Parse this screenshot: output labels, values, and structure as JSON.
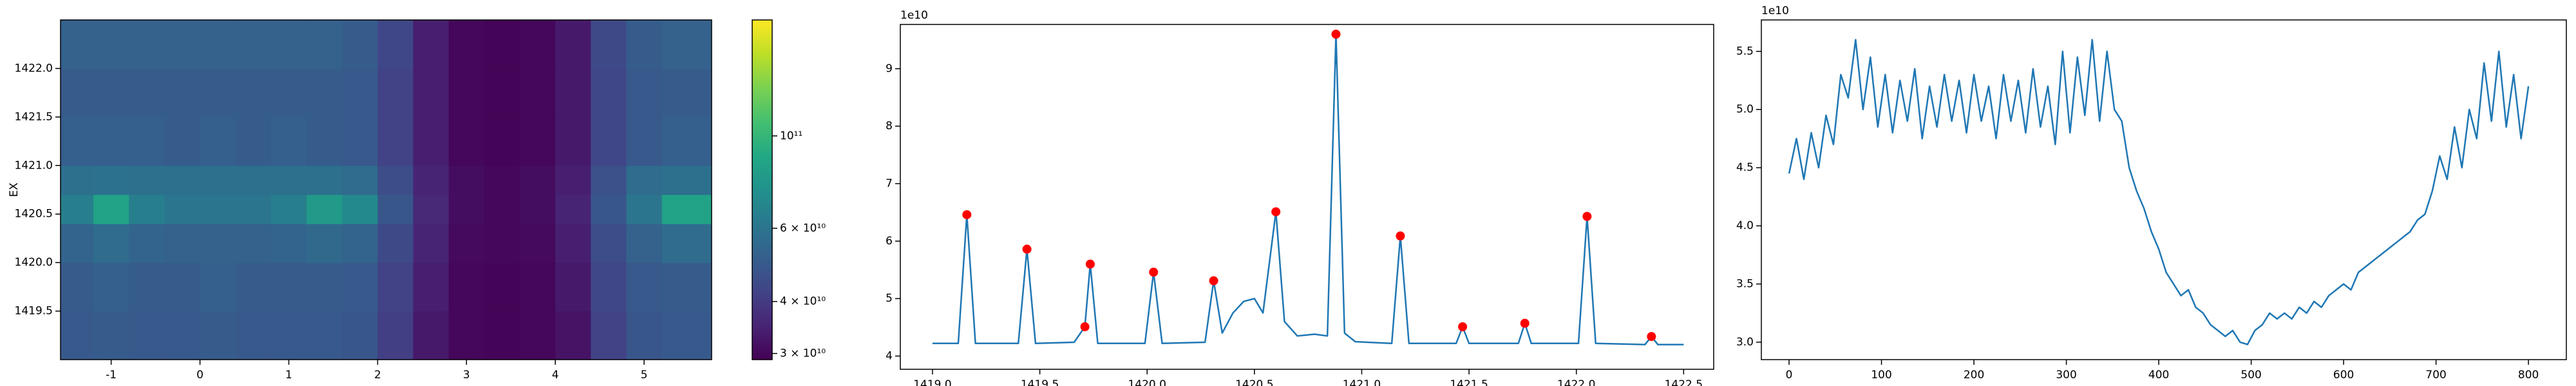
{
  "chart_data": [
    {
      "type": "heatmap",
      "ylabel": "EX",
      "cmap": "viridis",
      "x_edges": [
        -1.57,
        -1.2,
        -0.8,
        -0.4,
        0,
        0.4,
        0.8,
        1.2,
        1.6,
        2.0,
        2.4,
        2.8,
        3.2,
        3.6,
        4.0,
        4.4,
        4.8,
        5.2,
        5.76
      ],
      "y_edges": [
        1419.0,
        1419.5,
        1420.0,
        1420.4,
        1420.7,
        1421.0,
        1421.5,
        1422.0,
        1422.5
      ],
      "z": [
        [
          49000000000.0,
          50000000000.0,
          49000000000.0,
          49000000000.0,
          50000000000.0,
          49000000000.0,
          49000000000.0,
          49000000000.0,
          48000000000.0,
          41000000000.0,
          33000000000.0,
          30000000000.0,
          29500000000.0,
          30000000000.0,
          32000000000.0,
          42000000000.0,
          48000000000.0,
          49000000000.0
        ],
        [
          50000000000.0,
          51000000000.0,
          50000000000.0,
          50000000000.0,
          51000000000.0,
          50000000000.0,
          50000000000.0,
          50000000000.0,
          49000000000.0,
          42000000000.0,
          34000000000.0,
          30000000000.0,
          29500000000.0,
          30000000000.0,
          33000000000.0,
          43000000000.0,
          49000000000.0,
          50000000000.0
        ],
        [
          53000000000.0,
          56000000000.0,
          53000000000.0,
          52000000000.0,
          52000000000.0,
          52000000000.0,
          53000000000.0,
          55000000000.0,
          53000000000.0,
          44000000000.0,
          35000000000.0,
          30500000000.0,
          30000000000.0,
          30500000000.0,
          34000000000.0,
          45000000000.0,
          52000000000.0,
          56000000000.0
        ],
        [
          65000000000.0,
          85000000000.0,
          65000000000.0,
          60000000000.0,
          60000000000.0,
          60000000000.0,
          65000000000.0,
          80000000000.0,
          70000000000.0,
          48000000000.0,
          36000000000.0,
          31000000000.0,
          30000000000.0,
          31000000000.0,
          35000000000.0,
          48000000000.0,
          60000000000.0,
          85000000000.0
        ],
        [
          58000000000.0,
          59000000000.0,
          58000000000.0,
          58000000000.0,
          58000000000.0,
          58000000000.0,
          58000000000.0,
          58000000000.0,
          56000000000.0,
          45000000000.0,
          35000000000.0,
          31000000000.0,
          30000000000.0,
          31000000000.0,
          34000000000.0,
          46000000000.0,
          56000000000.0,
          58000000000.0
        ],
        [
          51000000000.0,
          51000000000.0,
          51000000000.0,
          50000000000.0,
          51000000000.0,
          50000000000.0,
          51000000000.0,
          50000000000.0,
          49000000000.0,
          42000000000.0,
          34000000000.0,
          30000000000.0,
          29500000000.0,
          30000000000.0,
          33000000000.0,
          43000000000.0,
          49000000000.0,
          51000000000.0
        ],
        [
          50000000000.0,
          50000000000.0,
          50000000000.0,
          50000000000.0,
          50000000000.0,
          50000000000.0,
          50000000000.0,
          50000000000.0,
          49000000000.0,
          42000000000.0,
          34000000000.0,
          30000000000.0,
          29500000000.0,
          30000000000.0,
          33000000000.0,
          43000000000.0,
          49000000000.0,
          50000000000.0
        ],
        [
          52000000000.0,
          52000000000.0,
          52000000000.0,
          52000000000.0,
          52000000000.0,
          52000000000.0,
          52000000000.0,
          52000000000.0,
          50000000000.0,
          43000000000.0,
          34000000000.0,
          30000000000.0,
          29500000000.0,
          30000000000.0,
          33000000000.0,
          44000000000.0,
          50000000000.0,
          52000000000.0
        ]
      ],
      "xlim": [
        -1.57,
        5.76
      ],
      "xticks": [
        -1,
        0,
        1,
        2,
        3,
        4,
        5
      ],
      "ylim": [
        1419.0,
        1422.5
      ],
      "yticks": [
        1419.5,
        {
          "value": 1420,
          "label": "1420.0"
        },
        1420.5,
        {
          "value": 1421,
          "label": "1421.0"
        },
        1421.5,
        {
          "value": 1422,
          "label": "1422.0"
        }
      ],
      "colorbar": {
        "log": true,
        "lim": [
          29000000000.0,
          190000000000.0
        ],
        "ticks": [
          {
            "value": 30000000000.0,
            "label": "3 × 10¹⁰"
          },
          {
            "value": 40000000000.0,
            "label": "4 × 10¹⁰"
          },
          {
            "value": 60000000000.0,
            "label": "6 × 10¹⁰"
          },
          {
            "value": 100000000000.0,
            "label": "10¹¹"
          }
        ]
      }
    },
    {
      "type": "line",
      "offset_label": "1e10",
      "series": [
        {
          "type": "line",
          "color": "#1f77b4",
          "x": [
            1419.0,
            1419.12,
            1419.16,
            1419.2,
            1419.4,
            1419.44,
            1419.48,
            1419.66,
            1419.71,
            1419.735,
            1419.77,
            1419.99,
            1420.03,
            1420.07,
            1420.27,
            1420.31,
            1420.35,
            1420.4,
            1420.45,
            1420.5,
            1420.54,
            1420.6,
            1420.64,
            1420.7,
            1420.78,
            1420.84,
            1420.88,
            1420.92,
            1420.97,
            1421.14,
            1421.18,
            1421.22,
            1421.44,
            1421.47,
            1421.5,
            1421.73,
            1421.76,
            1421.79,
            1422.01,
            1422.05,
            1422.09,
            1422.32,
            1422.35,
            1422.38,
            1422.5
          ],
          "values": [
            4.22,
            4.22,
            6.46,
            4.22,
            4.22,
            5.86,
            4.22,
            4.24,
            4.51,
            5.6,
            4.22,
            4.22,
            5.46,
            4.22,
            4.24,
            5.31,
            4.4,
            4.75,
            4.95,
            5.0,
            4.75,
            6.51,
            4.6,
            4.35,
            4.38,
            4.35,
            9.6,
            4.4,
            4.25,
            4.22,
            6.09,
            4.22,
            4.22,
            4.51,
            4.22,
            4.22,
            4.57,
            4.22,
            4.22,
            6.43,
            4.22,
            4.2,
            4.34,
            4.2,
            4.2
          ]
        },
        {
          "type": "scatter",
          "color": "#ff0000",
          "x": [
            1419.16,
            1419.44,
            1419.71,
            1419.735,
            1420.03,
            1420.31,
            1420.6,
            1420.88,
            1421.18,
            1421.47,
            1421.76,
            1422.05,
            1422.35
          ],
          "values": [
            6.46,
            5.86,
            4.51,
            5.6,
            5.46,
            5.31,
            6.51,
            9.6,
            6.09,
            4.51,
            4.57,
            6.43,
            4.34
          ]
        }
      ],
      "xlim": [
        1418.85,
        1422.64
      ],
      "xticks": [
        {
          "value": 1419,
          "label": "1419.0"
        },
        1419.5,
        {
          "value": 1420,
          "label": "1420.0"
        },
        1420.5,
        {
          "value": 1421,
          "label": "1421.0"
        },
        1421.5,
        {
          "value": 1422,
          "label": "1422.0"
        },
        1422.5
      ],
      "ylim": [
        3.77,
        9.77
      ],
      "yticks": [
        4,
        5,
        6,
        7,
        8,
        9
      ]
    },
    {
      "type": "line",
      "offset_label": "1e10",
      "series": [
        {
          "type": "line",
          "color": "#1f77b4",
          "x": [
            0,
            8,
            16,
            24,
            32,
            40,
            48,
            56,
            64,
            72,
            80,
            88,
            96,
            104,
            112,
            120,
            128,
            136,
            144,
            152,
            160,
            168,
            176,
            184,
            192,
            200,
            208,
            216,
            224,
            232,
            240,
            248,
            256,
            264,
            272,
            280,
            288,
            296,
            304,
            312,
            320,
            328,
            336,
            344,
            352,
            360,
            368,
            376,
            384,
            392,
            400,
            408,
            416,
            424,
            432,
            440,
            448,
            456,
            464,
            472,
            480,
            488,
            496,
            504,
            512,
            520,
            528,
            536,
            544,
            552,
            560,
            568,
            576,
            584,
            592,
            600,
            608,
            616,
            624,
            632,
            640,
            648,
            656,
            664,
            672,
            680,
            688,
            696,
            704,
            712,
            720,
            728,
            736,
            744,
            752,
            760,
            768,
            776,
            784,
            792,
            800
          ],
          "values": [
            4.45,
            4.75,
            4.4,
            4.8,
            4.5,
            4.95,
            4.7,
            5.3,
            5.1,
            5.6,
            5.0,
            5.45,
            4.85,
            5.3,
            4.8,
            5.25,
            4.9,
            5.35,
            4.75,
            5.2,
            4.85,
            5.3,
            4.9,
            5.25,
            4.8,
            5.3,
            4.9,
            5.2,
            4.75,
            5.3,
            4.9,
            5.25,
            4.8,
            5.35,
            4.85,
            5.2,
            4.7,
            5.5,
            4.8,
            5.45,
            4.95,
            5.6,
            4.9,
            5.5,
            5.0,
            4.9,
            4.5,
            4.3,
            4.15,
            3.95,
            3.8,
            3.6,
            3.5,
            3.4,
            3.45,
            3.3,
            3.25,
            3.15,
            3.1,
            3.05,
            3.1,
            3.0,
            2.98,
            3.1,
            3.15,
            3.25,
            3.2,
            3.25,
            3.2,
            3.3,
            3.25,
            3.35,
            3.3,
            3.4,
            3.45,
            3.5,
            3.45,
            3.6,
            3.65,
            3.7,
            3.75,
            3.8,
            3.85,
            3.9,
            3.95,
            4.05,
            4.1,
            4.3,
            4.6,
            4.4,
            4.85,
            4.5,
            5.0,
            4.75,
            5.4,
            4.9,
            5.5,
            4.85,
            5.3,
            4.75,
            5.2
          ]
        }
      ],
      "xlim": [
        -30,
        841
      ],
      "xticks": [
        0,
        100,
        200,
        300,
        400,
        500,
        600,
        700,
        800
      ],
      "ylim": [
        2.85,
        5.77
      ],
      "yticks": [
        {
          "value": 3,
          "label": "3.0"
        },
        3.5,
        {
          "value": 4,
          "label": "4.0"
        },
        4.5,
        {
          "value": 5,
          "label": "5.0"
        },
        5.5
      ]
    }
  ]
}
